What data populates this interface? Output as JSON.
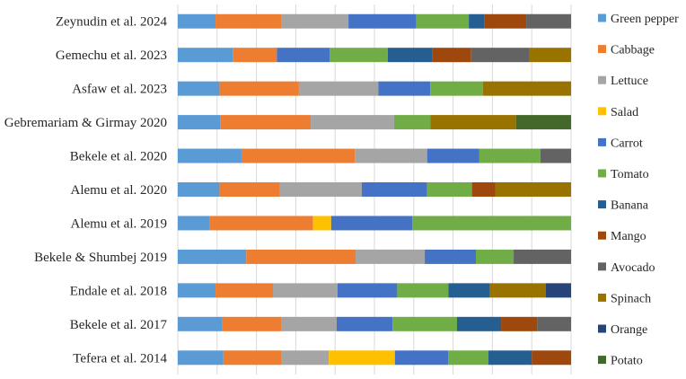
{
  "chart_data": {
    "type": "bar",
    "orientation": "horizontal",
    "stacked": "100%",
    "xlim": [
      0,
      100
    ],
    "grid": "vertical",
    "legend_position": "right",
    "categories": [
      "Zeynudin et al. 2024",
      "Gemechu et al. 2023",
      "Asfaw et al. 2023",
      "Gebremariam & Girmay 2020",
      "Bekele et al. 2020",
      "Alemu et al. 2020",
      "Alemu et al. 2019",
      "Bekele & Shumbej 2019",
      "Endale et al. 2018",
      "Bekele et al. 2017",
      "Tefera et al. 2014"
    ],
    "series": [
      {
        "name": "Green pepper",
        "color": "#5B9BD5",
        "values": [
          9.6,
          14.0,
          10.6,
          10.8,
          16.2,
          10.6,
          8.0,
          17.4,
          9.6,
          11.2,
          11.6
        ]
      },
      {
        "name": "Cabbage",
        "color": "#ED7D31",
        "values": [
          16.8,
          11.2,
          20.2,
          23.0,
          28.8,
          15.4,
          26.4,
          27.8,
          14.6,
          15.2,
          14.8
        ]
      },
      {
        "name": "Lettuce",
        "color": "#A5A5A5",
        "values": [
          17.0,
          0,
          20.2,
          21.2,
          18.4,
          20.8,
          0,
          17.6,
          16.4,
          14.0,
          12.0
        ]
      },
      {
        "name": "Salad",
        "color": "#FFC000",
        "values": [
          0,
          0,
          0,
          0,
          0,
          0,
          4.6,
          0,
          0,
          0,
          16.8
        ]
      },
      {
        "name": "Carrot",
        "color": "#4472C4",
        "values": [
          17.2,
          13.4,
          13.2,
          0,
          13.2,
          16.6,
          20.6,
          13.0,
          15.2,
          14.2,
          13.6
        ]
      },
      {
        "name": "Tomato",
        "color": "#70AD47",
        "values": [
          13.4,
          14.8,
          13.4,
          9.2,
          15.6,
          11.4,
          40.4,
          9.6,
          13.0,
          16.4,
          10.2
        ]
      },
      {
        "name": "Banana",
        "color": "#255E91",
        "values": [
          4.0,
          11.4,
          0,
          0,
          0,
          0,
          0,
          0,
          10.6,
          11.2,
          11.0
        ]
      },
      {
        "name": "Mango",
        "color": "#9E480E",
        "values": [
          10.6,
          9.8,
          0,
          0,
          0,
          6.0,
          0,
          0,
          0,
          9.2,
          10.0
        ]
      },
      {
        "name": "Avocado",
        "color": "#636363",
        "values": [
          11.4,
          14.8,
          0,
          0,
          7.8,
          0,
          0,
          14.6,
          0,
          8.6,
          0
        ]
      },
      {
        "name": "Spinach",
        "color": "#997300",
        "values": [
          0,
          10.6,
          22.4,
          21.8,
          0,
          19.2,
          0,
          0,
          14.2,
          0,
          0
        ]
      },
      {
        "name": "Orange",
        "color": "#264478",
        "values": [
          0,
          0,
          0,
          0,
          0,
          0,
          0,
          0,
          6.4,
          0,
          0
        ]
      },
      {
        "name": "Potato",
        "color": "#43682B",
        "values": [
          0,
          0,
          0,
          14.0,
          0,
          0,
          0,
          0,
          0,
          0,
          0
        ]
      }
    ]
  }
}
